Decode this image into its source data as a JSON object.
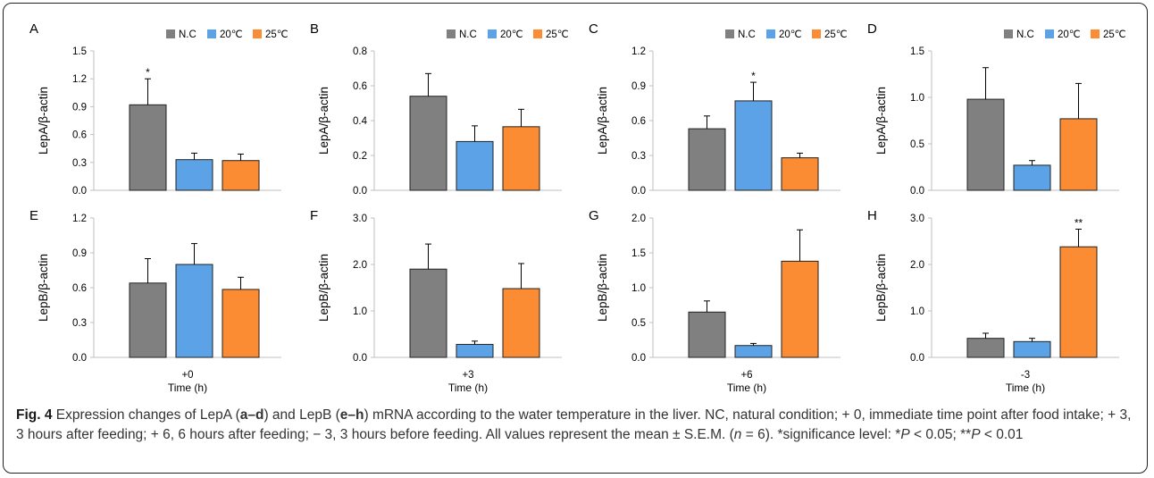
{
  "legend_labels": [
    "N.C",
    "20℃",
    "25℃"
  ],
  "colors": {
    "N.C": "#808080",
    "20℃": "#5ba3e6",
    "25℃": "#fb8c33",
    "bar_edge": "#222222",
    "axis": "#bfbfbf"
  },
  "chart_data": [
    {
      "panel": "A",
      "type": "bar",
      "ylabel": "LepA/β-actin",
      "xlabel": "",
      "tick_label": "",
      "ylim": [
        0,
        1.5
      ],
      "yticks": [
        "0.0",
        "0.3",
        "0.6",
        "0.9",
        "1.2",
        "1.5"
      ],
      "series": [
        {
          "name": "N.C",
          "value": 0.92,
          "error": 0.28,
          "sig": "*"
        },
        {
          "name": "20℃",
          "value": 0.33,
          "error": 0.07,
          "sig": ""
        },
        {
          "name": "25℃",
          "value": 0.32,
          "error": 0.07,
          "sig": ""
        }
      ]
    },
    {
      "panel": "B",
      "type": "bar",
      "ylabel": "LepA/β-actin",
      "xlabel": "",
      "tick_label": "",
      "ylim": [
        0,
        0.8
      ],
      "yticks": [
        "0.0",
        "0.2",
        "0.4",
        "0.6",
        "0.8"
      ],
      "series": [
        {
          "name": "N.C",
          "value": 0.54,
          "error": 0.13,
          "sig": ""
        },
        {
          "name": "20℃",
          "value": 0.28,
          "error": 0.09,
          "sig": ""
        },
        {
          "name": "25℃",
          "value": 0.365,
          "error": 0.1,
          "sig": ""
        }
      ]
    },
    {
      "panel": "C",
      "type": "bar",
      "ylabel": "LepA/β-actin",
      "xlabel": "",
      "tick_label": "",
      "ylim": [
        0,
        1.2
      ],
      "yticks": [
        "0.0",
        "0.3",
        "0.6",
        "0.9",
        "1.2"
      ],
      "series": [
        {
          "name": "N.C",
          "value": 0.53,
          "error": 0.11,
          "sig": ""
        },
        {
          "name": "20℃",
          "value": 0.77,
          "error": 0.16,
          "sig": "*"
        },
        {
          "name": "25℃",
          "value": 0.28,
          "error": 0.04,
          "sig": ""
        }
      ]
    },
    {
      "panel": "D",
      "type": "bar",
      "ylabel": "LepA/β-actin",
      "xlabel": "",
      "tick_label": "",
      "ylim": [
        0,
        1.5
      ],
      "yticks": [
        "0.0",
        "0.5",
        "1.0",
        "1.5"
      ],
      "series": [
        {
          "name": "N.C",
          "value": 0.98,
          "error": 0.34,
          "sig": ""
        },
        {
          "name": "20℃",
          "value": 0.27,
          "error": 0.05,
          "sig": ""
        },
        {
          "name": "25℃",
          "value": 0.77,
          "error": 0.38,
          "sig": ""
        }
      ]
    },
    {
      "panel": "E",
      "type": "bar",
      "ylabel": "LepB/β-actin",
      "xlabel": "Time (h)",
      "tick_label": "+0",
      "ylim": [
        0,
        1.2
      ],
      "yticks": [
        "0.0",
        "0.3",
        "0.6",
        "0.9",
        "1.2"
      ],
      "series": [
        {
          "name": "N.C",
          "value": 0.64,
          "error": 0.21,
          "sig": ""
        },
        {
          "name": "20℃",
          "value": 0.8,
          "error": 0.18,
          "sig": ""
        },
        {
          "name": "25℃",
          "value": 0.585,
          "error": 0.105,
          "sig": ""
        }
      ]
    },
    {
      "panel": "F",
      "type": "bar",
      "ylabel": "LepB/β-actin",
      "xlabel": "Time (h)",
      "tick_label": "+3",
      "ylim": [
        0,
        3.0
      ],
      "yticks": [
        "0.0",
        "1.0",
        "2.0",
        "3.0"
      ],
      "series": [
        {
          "name": "N.C",
          "value": 1.9,
          "error": 0.54,
          "sig": ""
        },
        {
          "name": "20℃",
          "value": 0.28,
          "error": 0.07,
          "sig": ""
        },
        {
          "name": "25℃",
          "value": 1.48,
          "error": 0.54,
          "sig": ""
        }
      ]
    },
    {
      "panel": "G",
      "type": "bar",
      "ylabel": "LepB/β-actin",
      "xlabel": "Time (h)",
      "tick_label": "+6",
      "ylim": [
        0,
        2.0
      ],
      "yticks": [
        "0.0",
        "0.5",
        "1.0",
        "1.5",
        "2.0"
      ],
      "series": [
        {
          "name": "N.C",
          "value": 0.65,
          "error": 0.16,
          "sig": ""
        },
        {
          "name": "20℃",
          "value": 0.17,
          "error": 0.03,
          "sig": ""
        },
        {
          "name": "25℃",
          "value": 1.38,
          "error": 0.45,
          "sig": ""
        }
      ]
    },
    {
      "panel": "H",
      "type": "bar",
      "ylabel": "LepB/β-actin",
      "xlabel": "Time (h)",
      "tick_label": "-3",
      "ylim": [
        0,
        3.0
      ],
      "yticks": [
        "0.0",
        "1.0",
        "2.0",
        "3.0"
      ],
      "series": [
        {
          "name": "N.C",
          "value": 0.41,
          "error": 0.11,
          "sig": ""
        },
        {
          "name": "20℃",
          "value": 0.34,
          "error": 0.07,
          "sig": ""
        },
        {
          "name": "25℃",
          "value": 2.38,
          "error": 0.38,
          "sig": "**"
        }
      ]
    }
  ],
  "caption": {
    "label": "Fig. 4",
    "t1": " Expression changes of LepA (",
    "b1": "a–d",
    "t2": ") and LepB (",
    "b2": "e–h",
    "t3": ") mRNA according to the water temperature in the liver. NC, natural condition; + 0, immediate time point after food intake; + 3, 3 hours after feeding; + 6, 6 hours after feeding; − 3, 3 hours before feeding. All values represent the mean ± S.E.M. (",
    "i1": "n",
    "t4": " = 6). *significance level: *",
    "i2": "P",
    "t5": " < 0.05; **",
    "i3": "P",
    "t6": " < 0.01"
  }
}
